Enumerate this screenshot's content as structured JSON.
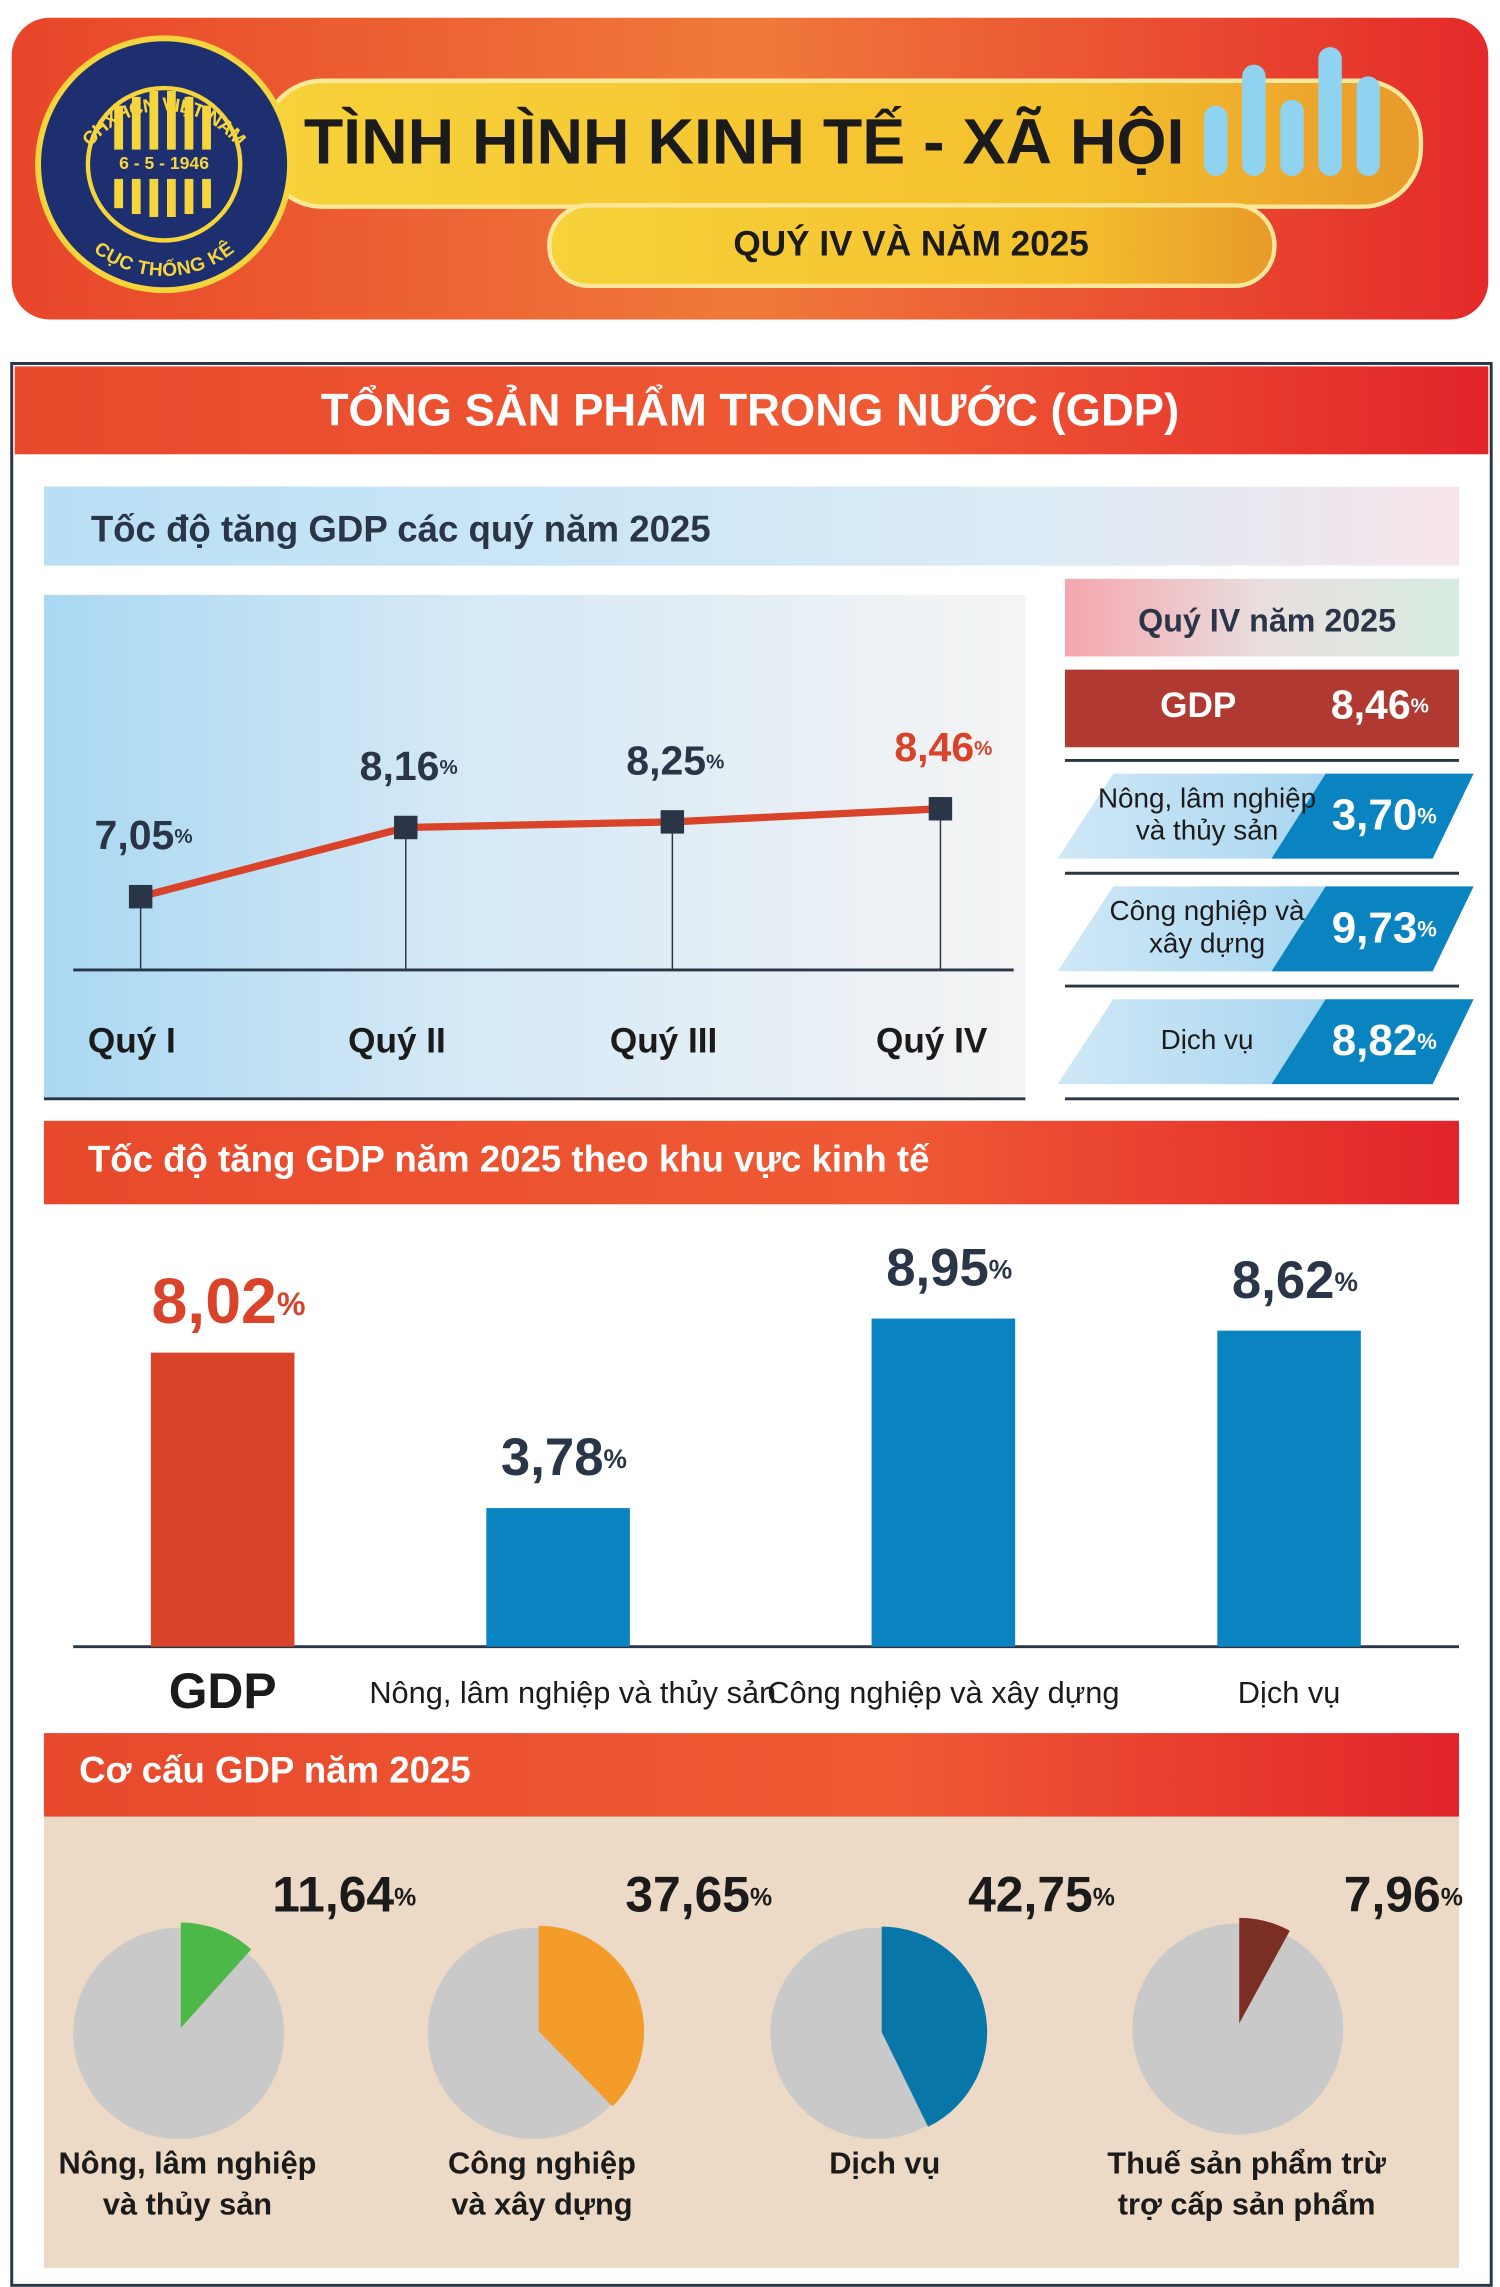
{
  "header": {
    "logo": {
      "top_text": "CHXHCN VIỆT NAM",
      "date": "6 - 5 - 1946",
      "bottom_text": "CỤC THỐNG KÊ"
    },
    "title": "TÌNH HÌNH KINH TẾ - XÃ HỘI",
    "subtitle": "QUÝ IV VÀ NĂM 2025"
  },
  "section_title": "TỔNG SẢN PHẨM TRONG NƯỚC (GDP)",
  "quarter_summary": {
    "title": "Quý IV năm 2025",
    "unit": "%",
    "rows": [
      {
        "label": [
          "GDP"
        ],
        "value": "8,46"
      },
      {
        "label": [
          "Nông, lâm nghiệp",
          "và thủy sản"
        ],
        "value": "3,70"
      },
      {
        "label": [
          "Công nghiệp và",
          "xây dựng"
        ],
        "value": "9,73"
      },
      {
        "label": [
          "Dịch vụ"
        ],
        "value": "8,82"
      }
    ]
  },
  "chart_data": [
    {
      "type": "line",
      "title": "Tốc độ tăng GDP các quý năm 2025",
      "categories": [
        "Quý I",
        "Quý II",
        "Quý III",
        "Quý IV"
      ],
      "values": [
        7.05,
        8.16,
        8.25,
        8.46
      ],
      "value_labels": [
        "7,05",
        "8,16",
        "8,25",
        "8,46"
      ],
      "unit": "%",
      "color": "#d8432a",
      "marker_color": "#2a3648",
      "label_colors": [
        "#2a3648",
        "#2a3648",
        "#2a3648",
        "#d8432a"
      ]
    },
    {
      "type": "bar",
      "title": "Tốc độ tăng GDP năm 2025 theo khu vực kinh tế",
      "categories": [
        "GDP",
        "Nông, lâm nghiệp và thủy sản",
        "Công nghiệp và xây dựng",
        "Dịch vụ"
      ],
      "values": [
        8.02,
        3.78,
        8.95,
        8.62
      ],
      "value_labels": [
        "8,02",
        "3,78",
        "8,95",
        "8,62"
      ],
      "unit": "%",
      "colors": [
        "#d8432a",
        "#0a84c1",
        "#0a84c1",
        "#0a84c1"
      ],
      "label_colors": [
        "#d8432a",
        "#2a3648",
        "#2a3648",
        "#2a3648"
      ]
    },
    {
      "type": "pie",
      "title": "Cơ cấu GDP năm 2025",
      "categories": [
        [
          "Nông, lâm nghiệp",
          "và thủy sản"
        ],
        [
          "Công nghiệp",
          "và xây dựng"
        ],
        [
          "Dịch vụ"
        ],
        [
          "Thuế sản phẩm trừ",
          "trợ cấp sản phẩm"
        ]
      ],
      "values": [
        11.64,
        37.65,
        42.75,
        7.96
      ],
      "value_labels": [
        "11,64",
        "37,65",
        "42,75",
        "7,96"
      ],
      "unit": "%",
      "colors": [
        "#4cb848",
        "#f39c2a",
        "#0877a8",
        "#7a2e24"
      ],
      "rest_color": "#c9c9c9"
    }
  ]
}
